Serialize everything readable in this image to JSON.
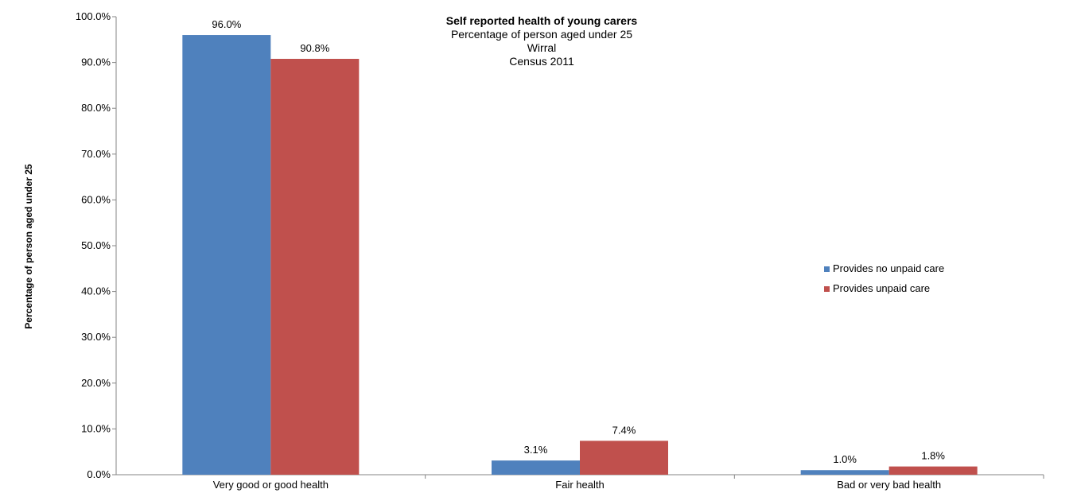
{
  "chart_data": {
    "type": "bar",
    "title": "Self reported  health of young carers",
    "subtitle_lines": [
      "Percentage of person aged under 25",
      "Wirral",
      "Census 2011"
    ],
    "ylabel": "Percentage of person aged under 25",
    "xlabel": "",
    "categories": [
      "Very good or good health",
      "Fair health",
      "Bad or very bad health"
    ],
    "ylim": [
      0,
      100
    ],
    "y_ticks": [
      "0.0%",
      "10.0%",
      "20.0%",
      "30.0%",
      "40.0%",
      "50.0%",
      "60.0%",
      "70.0%",
      "80.0%",
      "90.0%",
      "100.0%"
    ],
    "series": [
      {
        "name": "Provides no unpaid care",
        "color": "#4F81BD",
        "values": [
          96.0,
          3.1,
          1.0
        ],
        "labels": [
          "96.0%",
          "3.1%",
          "1.0%"
        ]
      },
      {
        "name": "Provides unpaid care",
        "color": "#C0504D",
        "values": [
          90.8,
          7.4,
          1.8
        ],
        "labels": [
          "90.8%",
          "7.4%",
          "1.8%"
        ]
      }
    ],
    "legend_position": "right",
    "grid": false
  }
}
